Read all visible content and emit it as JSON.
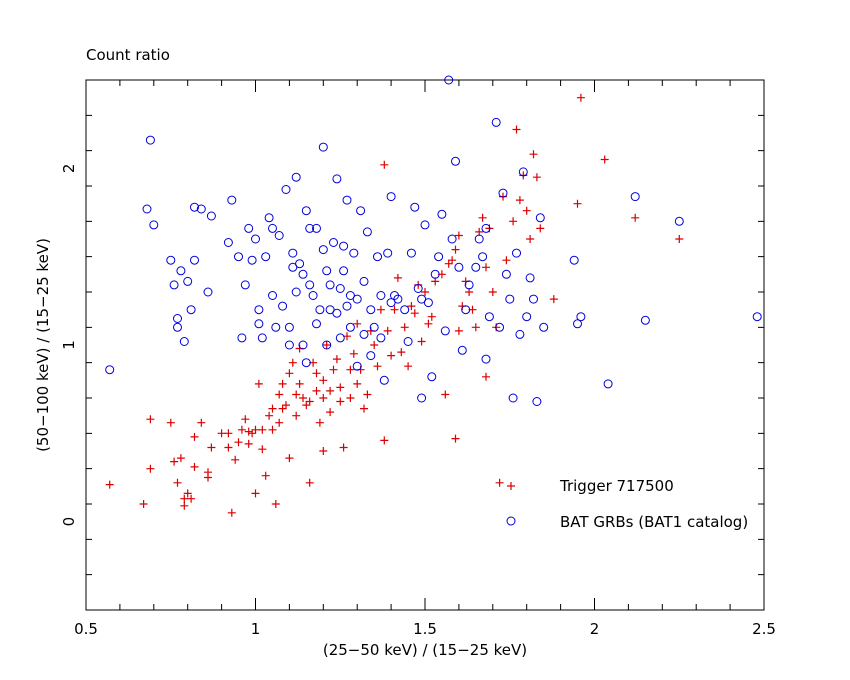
{
  "chart_data": {
    "type": "scatter",
    "title": "Count ratio",
    "xlabel": "(25−50 keV) / (15−25 keV)",
    "ylabel": "(50−100 keV) / (15−25 keV)",
    "xlim": [
      0.5,
      2.5
    ],
    "ylim": [
      -0.5,
      2.5
    ],
    "x_ticks": [
      {
        "value": 0.5,
        "label": "0.5"
      },
      {
        "value": 1.0,
        "label": "1"
      },
      {
        "value": 1.5,
        "label": "1.5"
      },
      {
        "value": 2.0,
        "label": "2"
      },
      {
        "value": 2.5,
        "label": "2.5"
      }
    ],
    "y_ticks": [
      {
        "value": 0,
        "label": "0"
      },
      {
        "value": 1,
        "label": "1"
      },
      {
        "value": 2,
        "label": "2"
      }
    ],
    "grid": false,
    "legend_position": "bottom-right",
    "series": [
      {
        "name": "Trigger 717500",
        "marker": "plus",
        "color": "#dd0000",
        "points": [
          [
            0.57,
            0.21
          ],
          [
            0.67,
            0.1
          ],
          [
            0.69,
            0.3
          ],
          [
            0.69,
            0.58
          ],
          [
            0.75,
            0.56
          ],
          [
            0.76,
            0.34
          ],
          [
            0.77,
            0.22
          ],
          [
            0.78,
            0.36
          ],
          [
            0.79,
            0.13
          ],
          [
            0.79,
            0.09
          ],
          [
            0.8,
            0.16
          ],
          [
            0.81,
            0.13
          ],
          [
            0.82,
            0.48
          ],
          [
            0.82,
            0.31
          ],
          [
            0.84,
            0.56
          ],
          [
            0.86,
            0.28
          ],
          [
            0.86,
            0.25
          ],
          [
            0.87,
            0.42
          ],
          [
            0.9,
            0.5
          ],
          [
            0.92,
            0.5
          ],
          [
            0.92,
            0.42
          ],
          [
            0.93,
            0.05
          ],
          [
            0.94,
            0.35
          ],
          [
            0.95,
            0.45
          ],
          [
            0.96,
            0.52
          ],
          [
            0.97,
            0.58
          ],
          [
            0.98,
            0.44
          ],
          [
            0.98,
            0.51
          ],
          [
            0.99,
            0.5
          ],
          [
            1.0,
            0.52
          ],
          [
            1.0,
            0.16
          ],
          [
            1.01,
            0.78
          ],
          [
            1.02,
            0.41
          ],
          [
            1.02,
            0.52
          ],
          [
            1.03,
            0.26
          ],
          [
            1.04,
            0.6
          ],
          [
            1.05,
            0.64
          ],
          [
            1.05,
            0.52
          ],
          [
            1.06,
            0.1
          ],
          [
            1.07,
            0.56
          ],
          [
            1.07,
            0.72
          ],
          [
            1.08,
            0.78
          ],
          [
            1.08,
            0.64
          ],
          [
            1.09,
            0.66
          ],
          [
            1.1,
            0.36
          ],
          [
            1.1,
            0.84
          ],
          [
            1.11,
            0.9
          ],
          [
            1.12,
            0.72
          ],
          [
            1.12,
            0.6
          ],
          [
            1.13,
            0.98
          ],
          [
            1.13,
            0.78
          ],
          [
            1.14,
            0.7
          ],
          [
            1.15,
            0.66
          ],
          [
            1.16,
            0.68
          ],
          [
            1.16,
            0.22
          ],
          [
            1.17,
            0.9
          ],
          [
            1.18,
            0.84
          ],
          [
            1.18,
            0.74
          ],
          [
            1.19,
            0.56
          ],
          [
            1.2,
            0.8
          ],
          [
            1.2,
            0.7
          ],
          [
            1.2,
            0.4
          ],
          [
            1.21,
            1.0
          ],
          [
            1.22,
            0.74
          ],
          [
            1.22,
            0.62
          ],
          [
            1.23,
            0.86
          ],
          [
            1.24,
            0.92
          ],
          [
            1.25,
            0.76
          ],
          [
            1.25,
            0.68
          ],
          [
            1.26,
            0.42
          ],
          [
            1.27,
            1.05
          ],
          [
            1.28,
            0.86
          ],
          [
            1.28,
            0.7
          ],
          [
            1.29,
            0.95
          ],
          [
            1.3,
            1.12
          ],
          [
            1.3,
            0.78
          ],
          [
            1.31,
            0.86
          ],
          [
            1.32,
            0.64
          ],
          [
            1.33,
            0.72
          ],
          [
            1.34,
            1.08
          ],
          [
            1.35,
            1.0
          ],
          [
            1.36,
            0.88
          ],
          [
            1.37,
            1.2
          ],
          [
            1.38,
            0.46
          ],
          [
            1.38,
            2.02
          ],
          [
            1.39,
            1.08
          ],
          [
            1.4,
            0.94
          ],
          [
            1.41,
            1.2
          ],
          [
            1.42,
            1.38
          ],
          [
            1.43,
            0.96
          ],
          [
            1.44,
            1.1
          ],
          [
            1.45,
            0.88
          ],
          [
            1.46,
            1.22
          ],
          [
            1.47,
            1.18
          ],
          [
            1.48,
            1.34
          ],
          [
            1.49,
            1.02
          ],
          [
            1.5,
            1.3
          ],
          [
            1.51,
            1.12
          ],
          [
            1.52,
            1.16
          ],
          [
            1.53,
            1.36
          ],
          [
            1.55,
            1.4
          ],
          [
            1.56,
            0.72
          ],
          [
            1.57,
            1.46
          ],
          [
            1.58,
            1.48
          ],
          [
            1.59,
            1.54
          ],
          [
            1.59,
            0.47
          ],
          [
            1.6,
            1.62
          ],
          [
            1.6,
            1.08
          ],
          [
            1.61,
            1.22
          ],
          [
            1.62,
            1.36
          ],
          [
            1.63,
            1.3
          ],
          [
            1.64,
            1.2
          ],
          [
            1.65,
            1.1
          ],
          [
            1.66,
            1.64
          ],
          [
            1.67,
            1.72
          ],
          [
            1.68,
            1.44
          ],
          [
            1.68,
            0.82
          ],
          [
            1.69,
            1.66
          ],
          [
            1.7,
            1.3
          ],
          [
            1.71,
            1.1
          ],
          [
            1.72,
            0.22
          ],
          [
            1.73,
            1.84
          ],
          [
            1.74,
            1.48
          ],
          [
            1.76,
            1.7
          ],
          [
            1.77,
            2.22
          ],
          [
            1.78,
            1.82
          ],
          [
            1.79,
            1.96
          ],
          [
            1.8,
            1.76
          ],
          [
            1.81,
            1.6
          ],
          [
            1.82,
            2.08
          ],
          [
            1.83,
            1.95
          ],
          [
            1.84,
            1.66
          ],
          [
            1.88,
            1.26
          ],
          [
            1.95,
            1.8
          ],
          [
            1.96,
            2.4
          ],
          [
            2.03,
            2.05
          ],
          [
            2.12,
            1.72
          ],
          [
            2.25,
            1.6
          ]
        ]
      },
      {
        "name": "BAT GRBs (BAT1 catalog)",
        "marker": "circle",
        "color": "#0000dd",
        "points": [
          [
            0.57,
            0.86
          ],
          [
            0.68,
            1.77
          ],
          [
            0.69,
            2.16
          ],
          [
            0.7,
            1.68
          ],
          [
            0.75,
            1.48
          ],
          [
            0.76,
            1.34
          ],
          [
            0.77,
            1.15
          ],
          [
            0.77,
            1.1
          ],
          [
            0.78,
            1.42
          ],
          [
            0.79,
            1.02
          ],
          [
            0.8,
            1.36
          ],
          [
            0.81,
            1.2
          ],
          [
            0.82,
            1.78
          ],
          [
            0.82,
            1.48
          ],
          [
            0.84,
            1.77
          ],
          [
            0.86,
            1.3
          ],
          [
            0.87,
            1.73
          ],
          [
            0.92,
            1.58
          ],
          [
            0.93,
            1.82
          ],
          [
            0.95,
            1.5
          ],
          [
            0.96,
            1.04
          ],
          [
            0.97,
            1.34
          ],
          [
            0.98,
            1.66
          ],
          [
            0.99,
            1.48
          ],
          [
            1.0,
            1.6
          ],
          [
            1.01,
            1.12
          ],
          [
            1.01,
            1.2
          ],
          [
            1.02,
            1.04
          ],
          [
            1.03,
            1.5
          ],
          [
            1.04,
            1.72
          ],
          [
            1.05,
            1.66
          ],
          [
            1.05,
            1.28
          ],
          [
            1.06,
            1.1
          ],
          [
            1.07,
            1.62
          ],
          [
            1.08,
            1.22
          ],
          [
            1.09,
            1.88
          ],
          [
            1.1,
            1.1
          ],
          [
            1.1,
            1.0
          ],
          [
            1.11,
            1.52
          ],
          [
            1.11,
            1.44
          ],
          [
            1.12,
            1.95
          ],
          [
            1.12,
            1.3
          ],
          [
            1.13,
            1.46
          ],
          [
            1.14,
            1.4
          ],
          [
            1.14,
            1.0
          ],
          [
            1.15,
            1.76
          ],
          [
            1.15,
            0.9
          ],
          [
            1.16,
            1.66
          ],
          [
            1.16,
            1.34
          ],
          [
            1.17,
            1.28
          ],
          [
            1.18,
            1.66
          ],
          [
            1.18,
            1.12
          ],
          [
            1.19,
            1.2
          ],
          [
            1.2,
            2.12
          ],
          [
            1.2,
            1.54
          ],
          [
            1.21,
            1.42
          ],
          [
            1.21,
            1.0
          ],
          [
            1.22,
            1.34
          ],
          [
            1.22,
            1.2
          ],
          [
            1.23,
            1.58
          ],
          [
            1.24,
            1.94
          ],
          [
            1.24,
            1.18
          ],
          [
            1.25,
            1.32
          ],
          [
            1.25,
            1.04
          ],
          [
            1.26,
            1.56
          ],
          [
            1.26,
            1.42
          ],
          [
            1.27,
            1.82
          ],
          [
            1.27,
            1.22
          ],
          [
            1.28,
            1.28
          ],
          [
            1.28,
            1.1
          ],
          [
            1.29,
            1.52
          ],
          [
            1.3,
            1.26
          ],
          [
            1.3,
            0.88
          ],
          [
            1.31,
            1.76
          ],
          [
            1.32,
            1.36
          ],
          [
            1.32,
            1.06
          ],
          [
            1.33,
            1.64
          ],
          [
            1.34,
            1.2
          ],
          [
            1.34,
            0.94
          ],
          [
            1.35,
            1.1
          ],
          [
            1.36,
            1.5
          ],
          [
            1.37,
            1.28
          ],
          [
            1.37,
            1.04
          ],
          [
            1.38,
            0.8
          ],
          [
            1.39,
            1.52
          ],
          [
            1.4,
            1.24
          ],
          [
            1.4,
            1.84
          ],
          [
            1.41,
            1.28
          ],
          [
            1.42,
            1.26
          ],
          [
            1.44,
            1.2
          ],
          [
            1.45,
            1.02
          ],
          [
            1.46,
            1.52
          ],
          [
            1.47,
            1.78
          ],
          [
            1.48,
            1.32
          ],
          [
            1.49,
            1.26
          ],
          [
            1.49,
            0.7
          ],
          [
            1.5,
            1.68
          ],
          [
            1.51,
            1.24
          ],
          [
            1.52,
            0.82
          ],
          [
            1.53,
            1.4
          ],
          [
            1.54,
            1.5
          ],
          [
            1.55,
            1.74
          ],
          [
            1.56,
            1.08
          ],
          [
            1.57,
            2.5
          ],
          [
            1.58,
            1.6
          ],
          [
            1.59,
            2.04
          ],
          [
            1.6,
            1.44
          ],
          [
            1.61,
            0.97
          ],
          [
            1.62,
            1.2
          ],
          [
            1.63,
            1.34
          ],
          [
            1.65,
            1.44
          ],
          [
            1.66,
            1.6
          ],
          [
            1.67,
            1.5
          ],
          [
            1.68,
            1.66
          ],
          [
            1.68,
            0.92
          ],
          [
            1.69,
            1.16
          ],
          [
            1.71,
            2.26
          ],
          [
            1.72,
            1.1
          ],
          [
            1.73,
            1.86
          ],
          [
            1.74,
            1.4
          ],
          [
            1.75,
            1.26
          ],
          [
            1.76,
            0.7
          ],
          [
            1.77,
            1.52
          ],
          [
            1.78,
            1.06
          ],
          [
            1.79,
            1.98
          ],
          [
            1.8,
            1.16
          ],
          [
            1.81,
            1.38
          ],
          [
            1.82,
            1.26
          ],
          [
            1.83,
            0.68
          ],
          [
            1.84,
            1.72
          ],
          [
            1.85,
            1.1
          ],
          [
            1.94,
            1.48
          ],
          [
            1.95,
            1.12
          ],
          [
            1.96,
            1.16
          ],
          [
            2.04,
            0.78
          ],
          [
            2.12,
            1.84
          ],
          [
            2.15,
            1.14
          ],
          [
            2.25,
            1.7
          ],
          [
            2.48,
            1.16
          ]
        ]
      }
    ]
  }
}
